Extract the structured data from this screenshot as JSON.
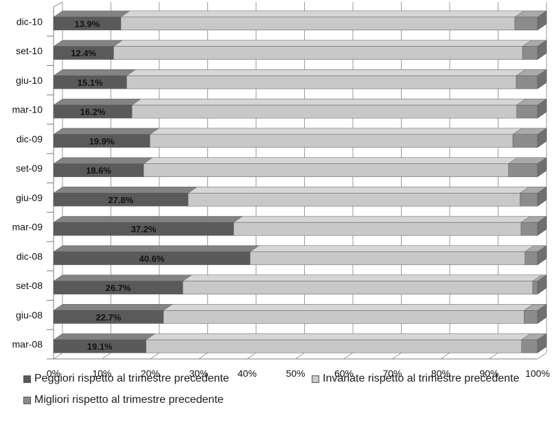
{
  "chart_data": {
    "type": "bar",
    "orientation": "horizontal",
    "stacked": "percent",
    "style": "3d",
    "categories": [
      "mar-08",
      "giu-08",
      "set-08",
      "dic-08",
      "mar-09",
      "giu-09",
      "set-09",
      "dic-09",
      "mar-10",
      "giu-10",
      "set-10",
      "dic-10"
    ],
    "series": [
      {
        "name": "Peggiori rispetto al trimestre precedente",
        "color": "#5a5a5a",
        "values": [
          19.1,
          22.7,
          26.7,
          40.6,
          37.2,
          27.8,
          18.6,
          19.9,
          16.2,
          15.1,
          12.4,
          13.9
        ],
        "labels": [
          "19.1%",
          "22.7%",
          "26.7%",
          "40.6%",
          "37.2%",
          "27.8%",
          "18.6%",
          "19.9%",
          "16.2%",
          "15.1%",
          "12.4%",
          "13.9%"
        ]
      },
      {
        "name": "Invariate rispetto al trimestre precedente",
        "color": "#c8c8c8",
        "values": [
          77.6,
          74.5,
          72.3,
          56.8,
          59.4,
          68.6,
          75.4,
          75.0,
          79.5,
          80.5,
          84.5,
          81.4
        ]
      },
      {
        "name": "Migliori rispetto al trimestre precedente",
        "color": "#8c8c8c",
        "values": [
          3.3,
          2.8,
          1.0,
          2.6,
          3.4,
          3.6,
          6.0,
          5.1,
          4.3,
          4.4,
          3.1,
          4.7
        ]
      }
    ],
    "xlim": [
      0,
      100
    ],
    "xticks": [
      "0%",
      "10%",
      "20%",
      "30%",
      "40%",
      "50%",
      "60%",
      "70%",
      "80%",
      "90%",
      "100%"
    ],
    "grid": true,
    "legend_position": "bottom"
  }
}
